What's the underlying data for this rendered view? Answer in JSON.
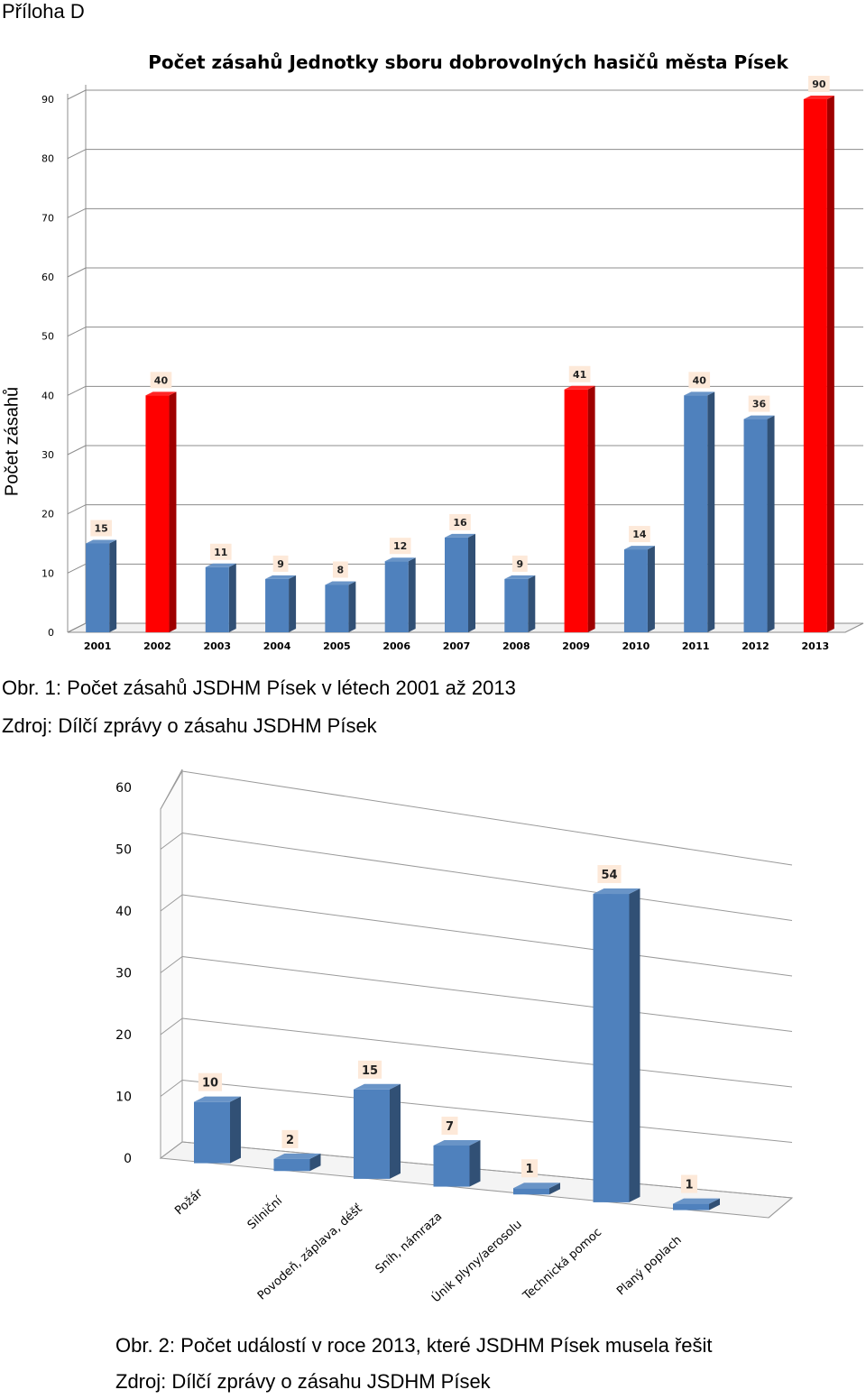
{
  "page": {
    "heading": "Příloha D",
    "caption1": "Obr. 1: Počet zásahů JSDHM Písek v létech 2001 až 2013",
    "source1": "Zdroj: Dílčí zprávy o zásahu JSDHM Písek",
    "caption2": "Obr. 2: Počet událostí v roce 2013, které JSDHM Písek musela řešit",
    "source2": "Zdroj: Dílčí zprávy o zásahu JSDHM Písek"
  },
  "colors": {
    "blue_bar": "#4F81BD",
    "red_bar": "#FF0000",
    "label_bg": "#FDE9D9"
  },
  "chart_data": [
    {
      "type": "bar",
      "title": "Počet zásahů Jednotky sboru dobrovolných hasičů města Písek",
      "ylabel": "Počet zásahů",
      "xlabel": "",
      "categories": [
        "2001",
        "2002",
        "2003",
        "2004",
        "2005",
        "2006",
        "2007",
        "2008",
        "2009",
        "2010",
        "2011",
        "2012",
        "2013"
      ],
      "values": [
        15,
        40,
        11,
        9,
        8,
        12,
        16,
        9,
        41,
        14,
        40,
        36,
        90
      ],
      "highlighted": [
        "2002",
        "2009",
        "2013"
      ],
      "ylim": [
        0,
        90
      ],
      "yticks": [
        0,
        10,
        20,
        30,
        40,
        50,
        60,
        70,
        80,
        90
      ],
      "grid": true,
      "data_labels": true
    },
    {
      "type": "bar",
      "title": "",
      "xlabel": "",
      "ylabel": "",
      "categories": [
        "Požár",
        "Silniční",
        "Povodeň, záplava, déšť",
        "Sníh, námraza",
        "Únik plyny/aerosolu",
        "Technická pomoc",
        "Planý poplach"
      ],
      "values": [
        10,
        2,
        15,
        7,
        1,
        54,
        1
      ],
      "ylim": [
        0,
        60
      ],
      "yticks": [
        0,
        10,
        20,
        30,
        40,
        50,
        60
      ],
      "grid": true,
      "data_labels": true
    }
  ]
}
